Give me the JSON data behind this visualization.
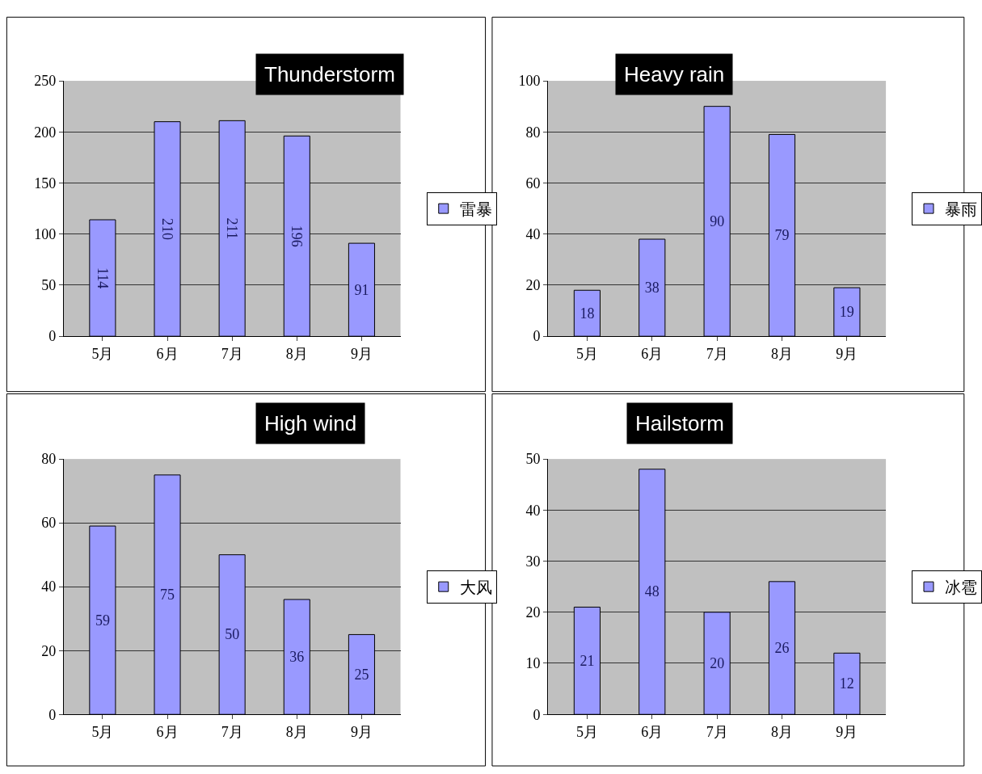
{
  "chart_data": [
    {
      "type": "bar",
      "title": "Thunderstorm",
      "categories": [
        "5月",
        "6月",
        "7月",
        "8月",
        "9月"
      ],
      "series": [
        {
          "name": "雷暴",
          "color": "#9999ff",
          "values": [
            114,
            210,
            211,
            196,
            91
          ]
        }
      ],
      "ylim": [
        0,
        250
      ],
      "yticks": [
        0,
        50,
        100,
        150,
        200,
        250
      ],
      "grid": "y",
      "legend": "right",
      "data_labels": true
    },
    {
      "type": "bar",
      "title": "Heavy rain",
      "categories": [
        "5月",
        "6月",
        "7月",
        "8月",
        "9月"
      ],
      "series": [
        {
          "name": "暴雨",
          "color": "#9999ff",
          "values": [
            18,
            38,
            90,
            79,
            19
          ]
        }
      ],
      "ylim": [
        0,
        100
      ],
      "yticks": [
        0,
        20,
        40,
        60,
        80,
        100
      ],
      "grid": "y",
      "legend": "right",
      "data_labels": true
    },
    {
      "type": "bar",
      "title": "High wind",
      "categories": [
        "5月",
        "6月",
        "7月",
        "8月",
        "9月"
      ],
      "series": [
        {
          "name": "大风",
          "color": "#9999ff",
          "values": [
            59,
            75,
            50,
            36,
            25
          ]
        }
      ],
      "ylim": [
        0,
        80
      ],
      "yticks": [
        0,
        20,
        40,
        60,
        80
      ],
      "grid": "y",
      "legend": "right",
      "data_labels": true
    },
    {
      "type": "bar",
      "title": "Hailstorm",
      "categories": [
        "5月",
        "6月",
        "7月",
        "8月",
        "9月"
      ],
      "series": [
        {
          "name": "冰雹",
          "color": "#9999ff",
          "values": [
            21,
            48,
            20,
            26,
            12
          ]
        }
      ],
      "ylim": [
        0,
        50
      ],
      "yticks": [
        0,
        10,
        20,
        30,
        40,
        50
      ],
      "grid": "y",
      "legend": "right",
      "data_labels": true
    }
  ]
}
